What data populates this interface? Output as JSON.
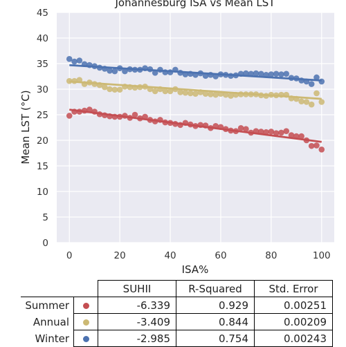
{
  "chart_data": {
    "type": "scatter",
    "title": "Johannesburg ISA vs Mean LST",
    "xlabel": "ISA%",
    "ylabel": "Mean LST (°C)",
    "xlim": [
      -5,
      105
    ],
    "ylim": [
      0,
      45
    ],
    "xticks": [
      0,
      20,
      40,
      60,
      80,
      100
    ],
    "yticks": [
      0,
      5,
      10,
      15,
      20,
      25,
      30,
      35,
      40,
      45
    ],
    "grid": true,
    "series": [
      {
        "name": "Summer",
        "color": "#c44e52",
        "x": [
          0,
          2,
          4,
          6,
          8,
          10,
          12,
          14,
          16,
          18,
          20,
          22,
          24,
          26,
          28,
          30,
          32,
          34,
          36,
          38,
          40,
          42,
          44,
          46,
          48,
          50,
          52,
          54,
          56,
          58,
          60,
          62,
          64,
          66,
          68,
          70,
          72,
          74,
          76,
          78,
          80,
          82,
          84,
          86,
          88,
          90,
          92,
          94,
          96,
          98,
          100
        ],
        "y": [
          24.8,
          25.6,
          25.6,
          25.8,
          26.0,
          25.6,
          25.1,
          24.9,
          24.7,
          24.6,
          24.6,
          24.8,
          24.4,
          25.0,
          24.3,
          24.6,
          24.0,
          23.7,
          24.0,
          23.5,
          23.4,
          23.2,
          23.0,
          23.4,
          23.1,
          22.8,
          23.0,
          22.9,
          22.4,
          22.8,
          22.6,
          22.2,
          21.9,
          21.8,
          22.4,
          22.2,
          21.5,
          21.8,
          21.7,
          21.6,
          21.7,
          21.4,
          21.5,
          21.8,
          21.0,
          20.8,
          20.8,
          20.0,
          18.9,
          19.0,
          18.2
        ],
        "fit": [
          26.0,
          19.7
        ]
      },
      {
        "name": "Annual",
        "color": "#ccb974",
        "x": [
          0,
          2,
          4,
          6,
          8,
          10,
          12,
          14,
          16,
          18,
          20,
          22,
          24,
          26,
          28,
          30,
          32,
          34,
          36,
          38,
          40,
          42,
          44,
          46,
          48,
          50,
          52,
          54,
          56,
          58,
          60,
          62,
          64,
          66,
          68,
          70,
          72,
          74,
          76,
          78,
          80,
          82,
          84,
          86,
          88,
          90,
          92,
          94,
          96,
          98,
          100
        ],
        "y": [
          31.6,
          31.6,
          31.8,
          31.0,
          31.3,
          31.0,
          30.8,
          30.4,
          30.0,
          29.9,
          29.9,
          30.5,
          30.4,
          30.3,
          30.4,
          30.5,
          30.0,
          29.6,
          30.0,
          29.6,
          29.6,
          30.0,
          29.4,
          29.3,
          29.2,
          29.1,
          29.4,
          29.1,
          29.0,
          28.9,
          29.1,
          28.9,
          28.7,
          28.9,
          29.0,
          29.0,
          29.0,
          29.0,
          28.8,
          28.7,
          28.9,
          28.8,
          28.9,
          28.9,
          28.2,
          28.1,
          27.6,
          27.5,
          27.0,
          29.2,
          27.5
        ],
        "fit": [
          31.5,
          28.1
        ]
      },
      {
        "name": "Winter",
        "color": "#4c72b0",
        "x": [
          0,
          2,
          4,
          6,
          8,
          10,
          12,
          14,
          16,
          18,
          20,
          22,
          24,
          26,
          28,
          30,
          32,
          34,
          36,
          38,
          40,
          42,
          44,
          46,
          48,
          50,
          52,
          54,
          56,
          58,
          60,
          62,
          64,
          66,
          68,
          70,
          72,
          74,
          76,
          78,
          80,
          82,
          84,
          86,
          88,
          90,
          92,
          94,
          96,
          98,
          100
        ],
        "y": [
          35.9,
          35.4,
          35.6,
          34.9,
          34.7,
          34.5,
          34.2,
          34.0,
          33.6,
          33.5,
          34.1,
          33.5,
          33.9,
          33.8,
          33.8,
          34.1,
          33.9,
          33.2,
          33.8,
          33.3,
          33.3,
          33.8,
          33.2,
          32.9,
          33.0,
          32.8,
          33.1,
          32.6,
          32.8,
          32.5,
          32.9,
          32.8,
          32.6,
          32.7,
          33.0,
          33.1,
          33.0,
          33.1,
          33.0,
          32.8,
          32.9,
          33.0,
          32.9,
          33.0,
          32.2,
          32.1,
          31.7,
          31.5,
          31.0,
          32.3,
          31.5
        ],
        "fit": [
          34.7,
          31.7
        ]
      }
    ]
  },
  "table": {
    "headers": [
      "SUHII",
      "R-Squared",
      "Std. Error"
    ],
    "rows": [
      {
        "label": "Summer",
        "color": "#c44e52",
        "suhii": "-6.339",
        "r2": "0.929",
        "se": "0.00251"
      },
      {
        "label": "Annual",
        "color": "#ccb974",
        "suhii": "-3.409",
        "r2": "0.844",
        "se": "0.00209"
      },
      {
        "label": "Winter",
        "color": "#4c72b0",
        "suhii": "-2.985",
        "r2": "0.754",
        "se": "0.00243"
      }
    ]
  }
}
